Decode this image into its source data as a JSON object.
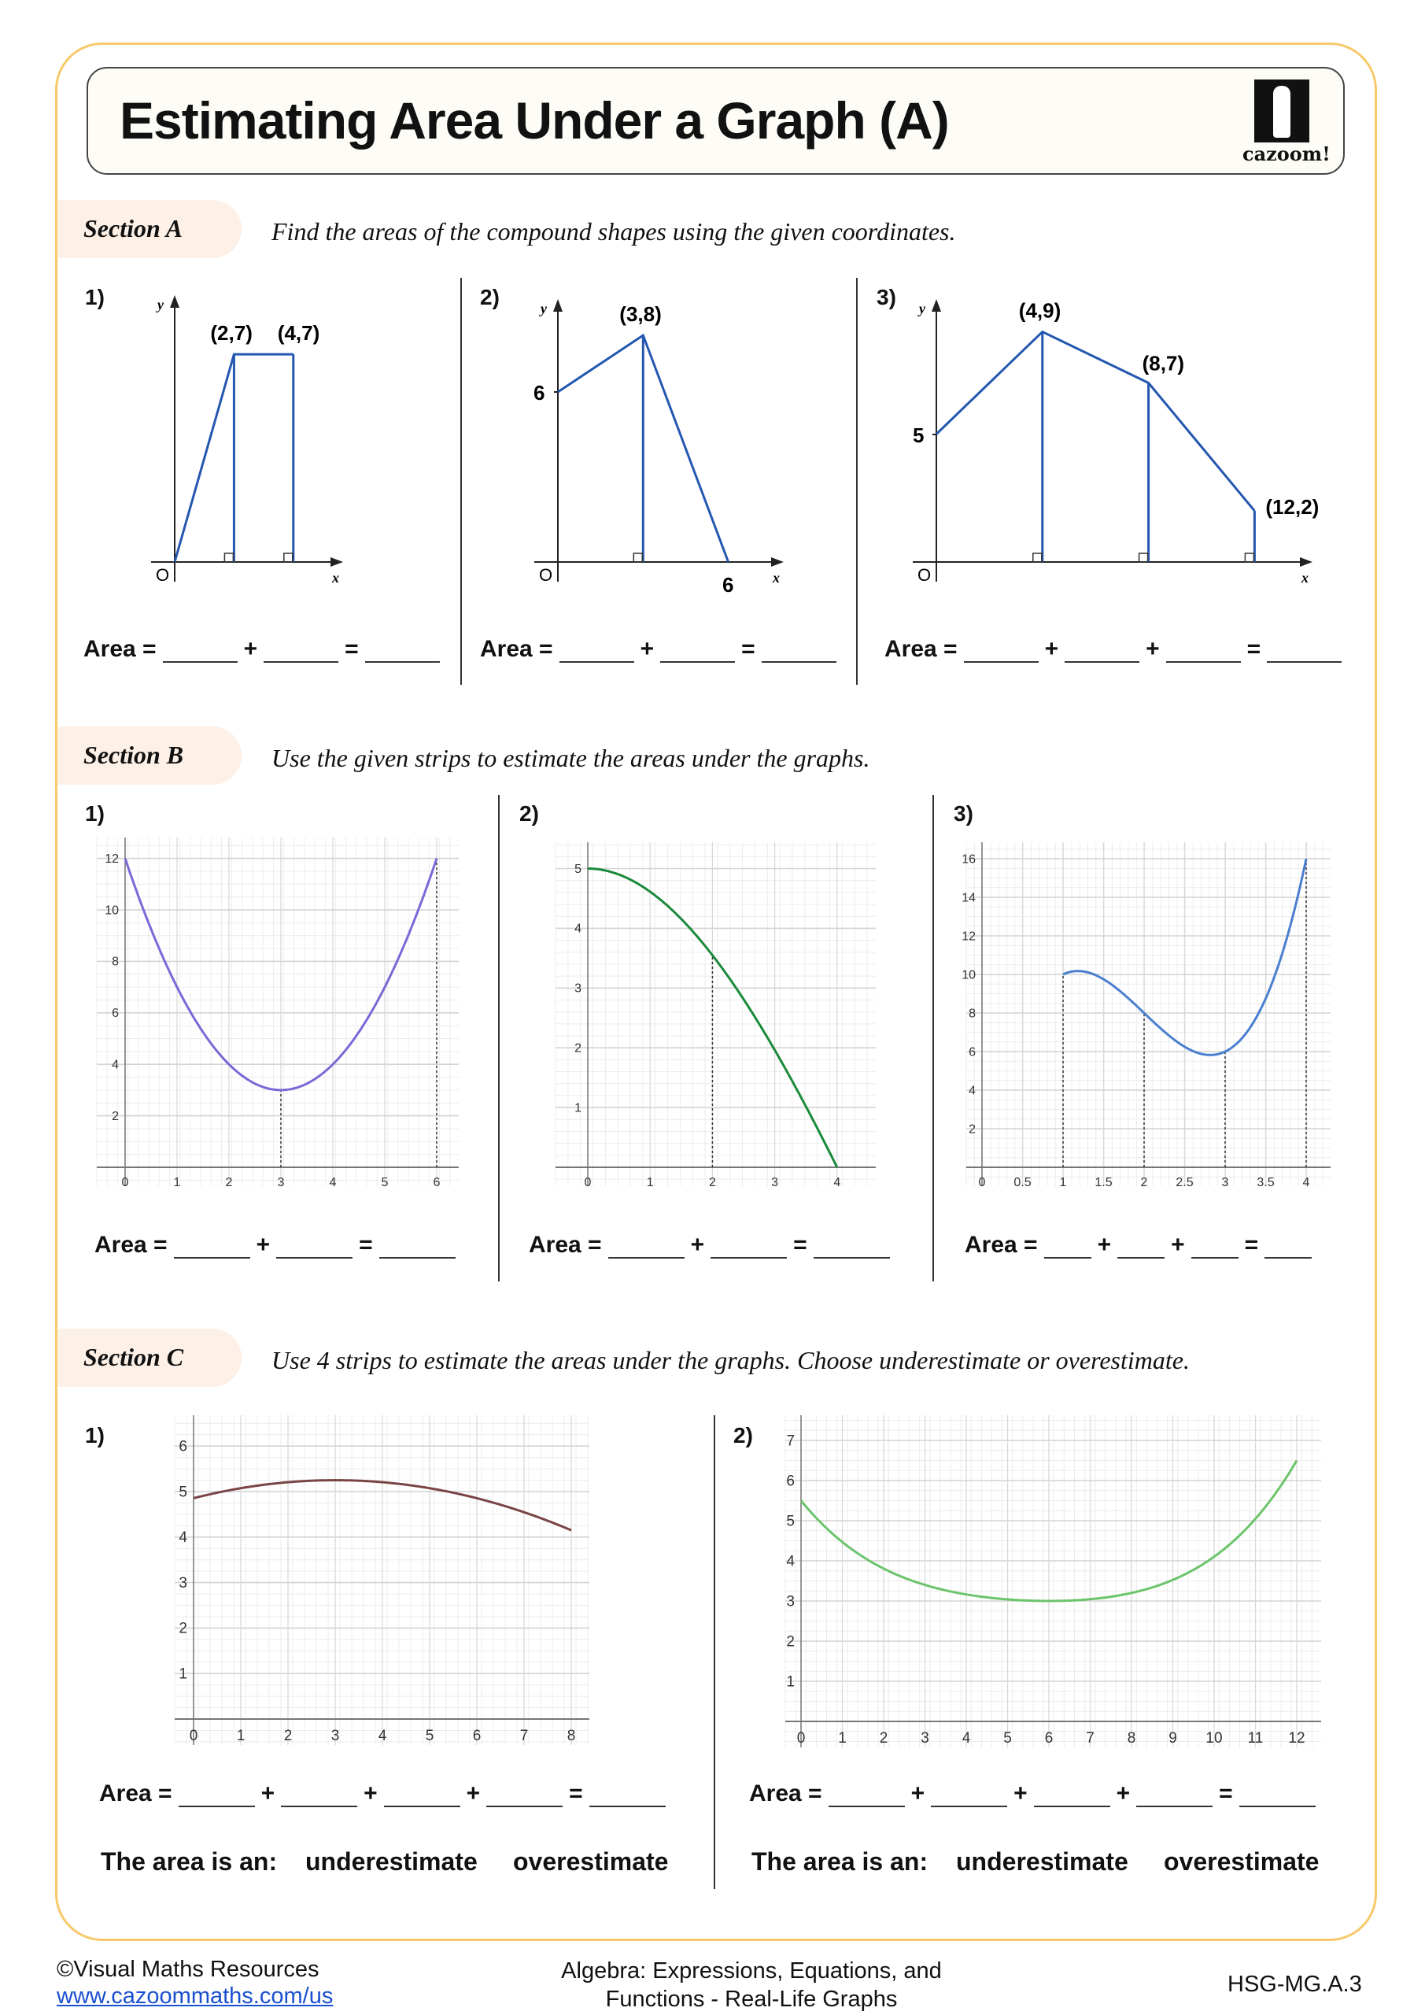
{
  "title": "Estimating Area Under a Graph (A)",
  "logo_text": "cazoom!",
  "labels": {
    "area": "Area =",
    "plus": "+",
    "equals": "=",
    "area_is": "The area is an:",
    "under": "underestimate",
    "over": "overestimate",
    "y": "y",
    "x": "x",
    "origin": "O"
  },
  "colors": {
    "border": "#f7c96a",
    "section_bg": "#fdf0e6",
    "line_blue": "#2457b0"
  },
  "sectionA": {
    "label": "Section A",
    "instruction": "Find the areas of the compound shapes using the given coordinates.",
    "questions": [
      {
        "num": "1)",
        "points": [
          [
            0,
            0
          ],
          [
            2,
            7
          ],
          [
            4,
            7
          ]
        ],
        "drops": [
          2,
          4
        ],
        "point_labels": [
          "(2,7)",
          "(4,7)"
        ],
        "axis_labels": [],
        "blanks": 3
      },
      {
        "num": "2)",
        "points": [
          [
            0,
            6
          ],
          [
            3,
            8
          ],
          [
            6,
            0
          ]
        ],
        "drops": [
          3
        ],
        "point_labels": [
          "(3,8)"
        ],
        "axis_labels": [
          "6",
          "6"
        ],
        "blanks": 3
      },
      {
        "num": "3)",
        "points": [
          [
            0,
            5
          ],
          [
            4,
            9
          ],
          [
            8,
            7
          ],
          [
            12,
            2
          ]
        ],
        "drops": [
          4,
          8,
          12
        ],
        "point_labels": [
          "(4,9)",
          "(8,7)",
          "(12,2)"
        ],
        "axis_labels": [
          "5"
        ],
        "blanks": 4
      }
    ]
  },
  "sectionB": {
    "label": "Section B",
    "instruction": "Use the given strips to estimate the areas under the graphs.",
    "questions": [
      {
        "num": "1)",
        "color": "#7b68d8",
        "xrange": [
          0,
          6
        ],
        "coeffs": [
          12,
          -6,
          1
        ],
        "center": 0,
        "strips": [
          3,
          6
        ],
        "xticks": [
          "0",
          "1",
          "2",
          "3",
          "4",
          "5",
          "6"
        ],
        "yticks": [
          "2",
          "4",
          "6",
          "8",
          "10",
          "12"
        ],
        "blanks": 3
      },
      {
        "num": "2)",
        "color": "#1a8a3a",
        "xrange": [
          0,
          4
        ],
        "coeffs": [
          5,
          0,
          -0.4125,
          0.025
        ],
        "center": 0,
        "strips": [
          2
        ],
        "xticks": [
          "0",
          "1",
          "2",
          "3",
          "4"
        ],
        "yticks": [
          "1",
          "2",
          "3",
          "4",
          "5"
        ],
        "blanks": 3
      },
      {
        "num": "3)",
        "color": "#4a7fd0",
        "xrange": [
          1,
          4
        ],
        "coeffs": [
          0,
          20,
          -12,
          2
        ],
        "center": 0,
        "strips": [
          1,
          2,
          3,
          4
        ],
        "xticks": [
          "0",
          "0.5",
          "1",
          "1.5",
          "2",
          "2.5",
          "3",
          "3.5",
          "4"
        ],
        "yticks": [
          "2",
          "4",
          "6",
          "8",
          "10",
          "12",
          "14",
          "16"
        ],
        "blanks": 4
      }
    ]
  },
  "sectionC": {
    "label": "Section C",
    "instruction": "Use 4 strips to estimate the areas under the graphs. Choose underestimate or overestimate.",
    "questions": [
      {
        "num": "1)",
        "color": "#7a4444",
        "xrange": [
          0,
          8
        ],
        "coeffs": [
          4.854,
          0.264,
          -0.044
        ],
        "center": 0,
        "xticks": [
          "0",
          "1",
          "2",
          "3",
          "4",
          "5",
          "6",
          "7",
          "8"
        ],
        "yticks": [
          "1",
          "2",
          "3",
          "4",
          "5",
          "6"
        ],
        "blanks": 5
      },
      {
        "num": "2)",
        "color": "#6cc46c",
        "xrange": [
          0,
          12
        ],
        "coeffs": [
          3,
          0,
          0.04074,
          0.002315,
          0.001183
        ],
        "center": 6,
        "xticks": [
          "0",
          "1",
          "2",
          "3",
          "4",
          "5",
          "6",
          "7",
          "8",
          "9",
          "10",
          "11",
          "12"
        ],
        "yticks": [
          "1",
          "2",
          "3",
          "4",
          "5",
          "6",
          "7"
        ],
        "blanks": 5
      }
    ]
  },
  "footer": {
    "copyright": "©Visual Maths Resources",
    "link": "www.cazoommaths.com/us",
    "topic": "Algebra: Expressions, Equations, and Functions - Real-Life Graphs",
    "code": "HSG-MG.A.3"
  }
}
